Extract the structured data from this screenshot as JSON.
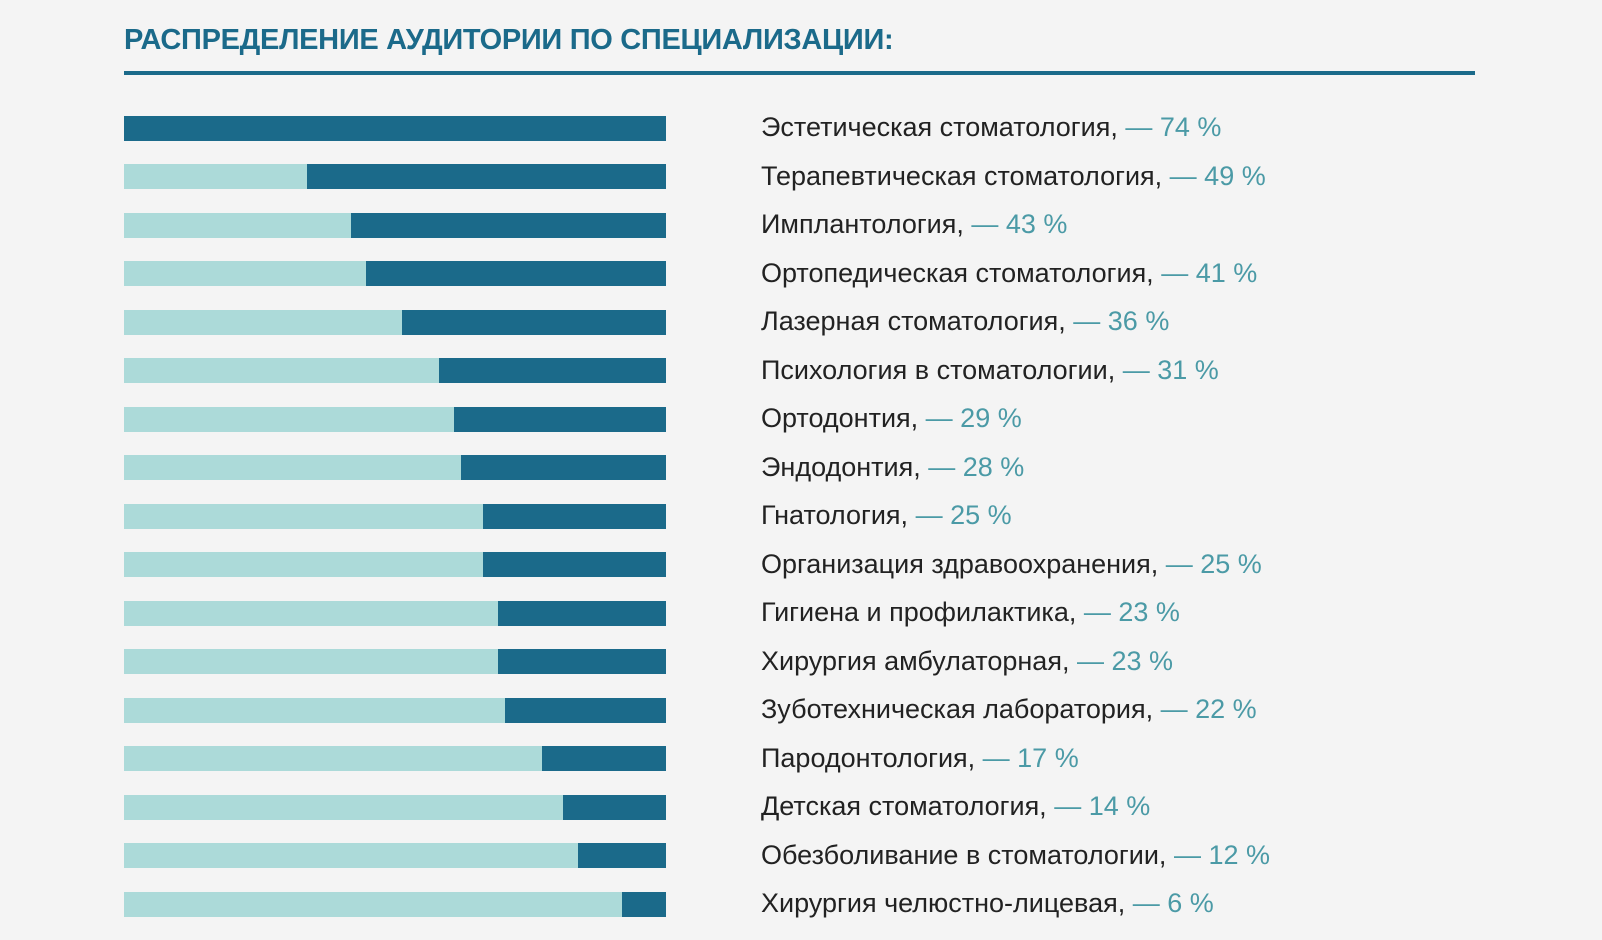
{
  "title": "РАСПРЕДЕЛЕНИЕ  АУДИТОРИИ ПО СПЕЦИАЛИЗАЦИИ:",
  "colors": {
    "accent": "#1b6a8a",
    "track": "#acdad9",
    "percent_text": "#4b9aa6",
    "background": "#f4f4f4"
  },
  "chart_data": {
    "type": "bar",
    "orientation": "horizontal",
    "title": "РАСПРЕДЕЛЕНИЕ  АУДИТОРИИ ПО СПЕЦИАЛИЗАЦИИ:",
    "unit": "%",
    "xlim": [
      0,
      74
    ],
    "grid": false,
    "categories": [
      "Эстетическая стоматология,",
      "Терапевтическая стоматология,",
      "Имплантология,",
      "Ортопедическая стоматология,",
      "Лазерная стоматология,",
      "Психология в стоматологии,",
      "Ортодонтия,",
      "Эндодонтия,",
      "Гнатология,",
      "Организация здравоохранения,",
      "Гигиена и профилактика,",
      "Хирургия амбулаторная,",
      "Зуботехническая лаборатория,",
      "Пародонтология,",
      "Детская стоматология,",
      "Обезболивание в стоматологии,",
      "Хирургия челюстно-лицевая,"
    ],
    "values": [
      74,
      49,
      43,
      41,
      36,
      31,
      29,
      28,
      25,
      25,
      23,
      23,
      22,
      17,
      14,
      12,
      6
    ],
    "value_labels": [
      "— 74 %",
      "— 49 %",
      "— 43 %",
      "— 41 %",
      "— 36 %",
      "— 31 %",
      "— 29 %",
      "— 28 %",
      "— 25 %",
      "— 25 %",
      "— 23 %",
      "— 23 %",
      "— 22 %",
      "— 17 %",
      "— 14 %",
      "— 12 %",
      "— 6 %"
    ]
  }
}
